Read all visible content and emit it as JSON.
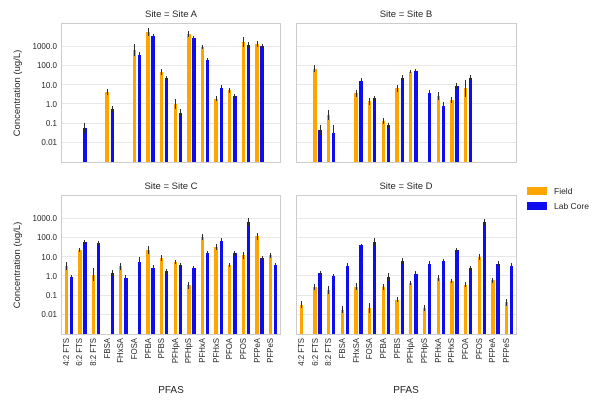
{
  "figure": {
    "ylabel": "Concentration (ug/L)",
    "xlabel": "PFAS",
    "ytick_labels": [
      "1000.0",
      "100.0",
      "10.0",
      "1.0",
      "0.1",
      "0.01"
    ]
  },
  "legend": {
    "items": [
      {
        "label": "Field",
        "color": "#ffa500"
      },
      {
        "label": "Lab Core",
        "color": "#0d0df0"
      }
    ]
  },
  "chart_data": {
    "type": "bar",
    "orientation": "vertical",
    "y_scale": "log",
    "ylabel": "Concentration (ug/L)",
    "xlabel": "PFAS",
    "yticks": [
      1000,
      100,
      10,
      1,
      0.1,
      0.01
    ],
    "ylim_note": "log axis, gridlines every decade from 0.01 to 1000; bars drawn from panel floor (~0.003)",
    "grid": true,
    "legend_position": "right",
    "categories": [
      "4:2 FTS",
      "6:2 FTS",
      "8:2 FTS",
      "FBSA",
      "FHxSA",
      "FOSA",
      "PFBA",
      "PFBS",
      "PFHpA",
      "PFHpS",
      "PFHxA",
      "PFHxS",
      "PFOA",
      "PFOS",
      "PFPeA",
      "PFPeS"
    ],
    "series_names": [
      "Field",
      "Lab Core"
    ],
    "facets": [
      {
        "title": "Site = Site A",
        "field": [
          null,
          null,
          null,
          4,
          null,
          600,
          5000,
          45,
          0.9,
          4000,
          850,
          1.7,
          4.7,
          1500,
          1250,
          null
        ],
        "field_err": [
          null,
          null,
          null,
          5.6,
          null,
          1200,
          7900,
          64,
          1.6,
          5700,
          1100,
          2.3,
          6.5,
          2700,
          1870,
          null
        ],
        "lab": [
          null,
          0.05,
          null,
          0.5,
          null,
          330,
          3100,
          21,
          0.33,
          2400,
          180,
          6.5,
          2.5,
          1100,
          950,
          null
        ],
        "lab_err": [
          null,
          0.09,
          null,
          0.75,
          null,
          450,
          4200,
          28,
          0.5,
          3400,
          240,
          8.5,
          3.2,
          1560,
          1230,
          null
        ]
      },
      {
        "title": "Site = Site B",
        "field": [
          null,
          65,
          0.25,
          null,
          3.3,
          1.3,
          0.12,
          6,
          45,
          null,
          2.4,
          1.5,
          6,
          null,
          null,
          null
        ],
        "field_err": [
          null,
          100,
          0.45,
          null,
          5,
          2,
          0.18,
          9,
          56,
          null,
          4.1,
          2.2,
          17,
          null,
          null,
          null
        ],
        "lab": [
          null,
          0.04,
          0.03,
          null,
          15,
          1.8,
          0.07,
          22,
          50,
          3.3,
          0.73,
          8,
          22,
          null,
          null,
          null
        ],
        "lab_err": [
          null,
          0.07,
          0.07,
          null,
          20,
          2.5,
          0.1,
          31,
          65,
          5,
          1.2,
          11,
          31,
          null,
          null,
          null
        ]
      },
      {
        "title": "Site = Site C",
        "field": [
          3,
          21,
          1.1,
          null,
          3,
          null,
          20,
          8,
          5,
          0.3,
          100,
          30,
          3.4,
          11,
          110,
          11
        ],
        "field_err": [
          4.7,
          26,
          2.5,
          null,
          4.5,
          null,
          32,
          11,
          6.5,
          0.45,
          150,
          45,
          4.5,
          17,
          167,
          15
        ],
        "lab": [
          0.8,
          55,
          50,
          1.3,
          0.7,
          5,
          2.5,
          1.6,
          3.5,
          2.4,
          14,
          60,
          14,
          600,
          8,
          3.5
        ],
        "lab_err": [
          1.1,
          70,
          65,
          1.8,
          1.0,
          8.5,
          3.3,
          2.2,
          4.5,
          3.2,
          18,
          85,
          19,
          930,
          10,
          4.5
        ]
      },
      {
        "title": "Site = Site D",
        "field": [
          0.03,
          0.25,
          0.18,
          0.016,
          0.26,
          0.02,
          0.25,
          0.055,
          0.4,
          0.02,
          0.7,
          0.5,
          0.32,
          9.3,
          0.55,
          0.04
        ],
        "field_err": [
          0.045,
          0.36,
          0.29,
          0.024,
          0.39,
          0.035,
          0.36,
          0.078,
          0.53,
          0.03,
          1.0,
          0.65,
          0.43,
          13,
          0.73,
          0.06
        ],
        "lab": [
          null,
          1.3,
          0.9,
          3.2,
          37,
          55,
          0.8,
          5.7,
          1.2,
          4,
          5.5,
          21,
          2.3,
          600,
          4,
          3.2
        ],
        "lab_err": [
          null,
          1.7,
          1.2,
          4.2,
          45,
          92,
          1.27,
          7.9,
          1.6,
          5.3,
          7.0,
          28,
          3.2,
          820,
          5.3,
          4.2
        ]
      }
    ]
  }
}
